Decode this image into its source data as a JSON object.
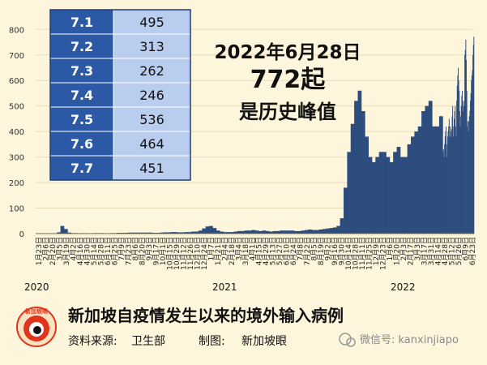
{
  "chart_data": {
    "type": "bar",
    "title": "新加坡自疫情发生以来的境外输入病例",
    "source_label": "资料来源:",
    "source": "卫生部",
    "maker_label": "制图:",
    "maker": "新加坡眼",
    "ylim": [
      0,
      820
    ],
    "yticks": [
      0,
      100,
      200,
      300,
      400,
      500,
      600,
      700,
      800
    ],
    "grid": true,
    "x_tick_labels": [
      "1月23日",
      "2月6日",
      "2月20日",
      "3月5日",
      "3月19日",
      "4月2日",
      "4月16日",
      "4月30日",
      "5月14日",
      "5月28日",
      "6月11日",
      "6月25日",
      "7月9日",
      "7月23日",
      "8月6日",
      "8月20日",
      "9月3日",
      "9月17日",
      "10月1日",
      "10月15日",
      "10月29日",
      "11月12日",
      "11月26日",
      "12月10日",
      "12月24日",
      "1月7日",
      "1月21日",
      "2月4日",
      "2月18日",
      "3月4日",
      "3月18日",
      "4月1日",
      "4月15日",
      "4月29日",
      "5月13日",
      "5月27日",
      "6月10日",
      "6月24日",
      "7月8日",
      "7月22日",
      "8月5日",
      "8月19日",
      "9月2日",
      "9月16日",
      "9月30日",
      "10月14日",
      "10月28日",
      "11月11日",
      "11月25日",
      "12月9日",
      "12月23日",
      "1月6日",
      "1月20日",
      "2月3日",
      "2月17日",
      "3月3日",
      "3月17日",
      "3月31日",
      "4月14日",
      "4月28日",
      "5月12日",
      "5月26日",
      "6月9日",
      "6月23日"
    ],
    "year_labels": [
      "2020",
      "2021",
      "2022"
    ],
    "series": [
      {
        "period_days": 7,
        "weekly_values": [
          0,
          0,
          1,
          0,
          1,
          0,
          5,
          30,
          18,
          4,
          2,
          2,
          1,
          2,
          1,
          1,
          2,
          2,
          2,
          1,
          1,
          2,
          2,
          3,
          3,
          3,
          4,
          4,
          4,
          4,
          4,
          4,
          4,
          3,
          3,
          4,
          5,
          5,
          6,
          6,
          5,
          5,
          6,
          6,
          8,
          8,
          12,
          20,
          28,
          30,
          22,
          12,
          8,
          6,
          6,
          6,
          8,
          10,
          10,
          12,
          12,
          14,
          12,
          10,
          12,
          10,
          8,
          10,
          10,
          12,
          12,
          12,
          12,
          10,
          10,
          12,
          14,
          16,
          14,
          14,
          16,
          18,
          20,
          22,
          24,
          30,
          60,
          180,
          320,
          430,
          520,
          560,
          480,
          380,
          300,
          280,
          300,
          320,
          320,
          300,
          280,
          320,
          340,
          300,
          300,
          350,
          380,
          400,
          420,
          480,
          500,
          520,
          420,
          420,
          460
        ]
      },
      {
        "period_days": 1,
        "daily_values": [
          320,
          330,
          300,
          350,
          380,
          400,
          420,
          300,
          350,
          380,
          400,
          420,
          450,
          380,
          420,
          400,
          380,
          410,
          460,
          500,
          380,
          420,
          450,
          480,
          500,
          420,
          380,
          520,
          580,
          620,
          650,
          600,
          560,
          480,
          420,
          460,
          500,
          540,
          560,
          520,
          480,
          500,
          520,
          700,
          720,
          760,
          680,
          560,
          420,
          440,
          400,
          440,
          460,
          480,
          520,
          550,
          600,
          620,
          640,
          700,
          740,
          772
        ]
      }
    ],
    "annotation": {
      "line1": "2022年6月28日",
      "line2": "772起",
      "line3": "是历史峰值"
    },
    "inset_table": {
      "rows": [
        {
          "date": "7.1",
          "value": "495"
        },
        {
          "date": "7.2",
          "value": "313"
        },
        {
          "date": "7.3",
          "value": "262"
        },
        {
          "date": "7.4",
          "value": "246"
        },
        {
          "date": "7.5",
          "value": "536"
        },
        {
          "date": "7.6",
          "value": "464"
        },
        {
          "date": "7.7",
          "value": "451"
        }
      ]
    }
  },
  "logo_text": "新加坡眼",
  "watermark": "微信号: kanxinjiapo",
  "colors": {
    "background": "#fdf5dc",
    "bars": "#2d4d7e",
    "grid": "#e9dcb4",
    "table_date_bg": "#2c59a6",
    "table_value_bg": "#b9cdef",
    "logo_red": "#e0341c"
  }
}
